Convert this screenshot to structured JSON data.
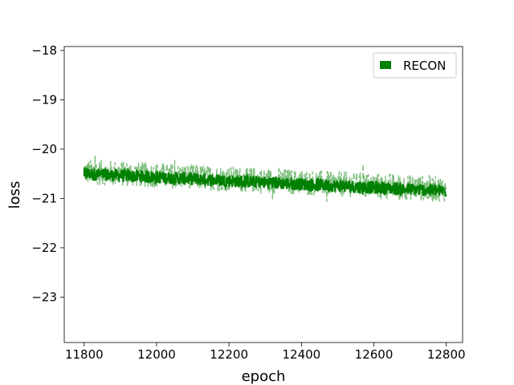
{
  "chart_data": {
    "type": "line",
    "title": "",
    "xlabel": "epoch",
    "ylabel": "loss",
    "xlim": [
      11745,
      12845
    ],
    "ylim": [
      -23.92,
      -17.92
    ],
    "xticks": [
      11800,
      12000,
      12200,
      12400,
      12600,
      12800
    ],
    "yticks": [
      -18,
      -19,
      -20,
      -21,
      -22,
      -23
    ],
    "xtick_labels": [
      "11800",
      "12000",
      "12200",
      "12400",
      "12600",
      "12800"
    ],
    "ytick_labels": [
      "−18",
      "−19",
      "−20",
      "−21",
      "−22",
      "−23"
    ],
    "legend_position": "top-right",
    "grid": false,
    "series": [
      {
        "name": "RECON",
        "color": "#008000",
        "trend": {
          "x": [
            11800,
            12000,
            12200,
            12400,
            12600,
            12800
          ],
          "y": [
            -20.5,
            -20.57,
            -20.64,
            -20.71,
            -20.78,
            -20.85
          ]
        },
        "main_band": [
          -0.13,
          0.13
        ],
        "raw_band": [
          -0.22,
          0.3
        ],
        "raw_extremes": [
          {
            "x": 11830,
            "y": -20.13
          },
          {
            "x": 12050,
            "y": -20.22
          },
          {
            "x": 12320,
            "y": -21.02
          },
          {
            "x": 12470,
            "y": -21.07
          },
          {
            "x": 12570,
            "y": -20.3
          },
          {
            "x": 12620,
            "y": -21.02
          },
          {
            "x": 12670,
            "y": -21.03
          }
        ]
      }
    ]
  }
}
